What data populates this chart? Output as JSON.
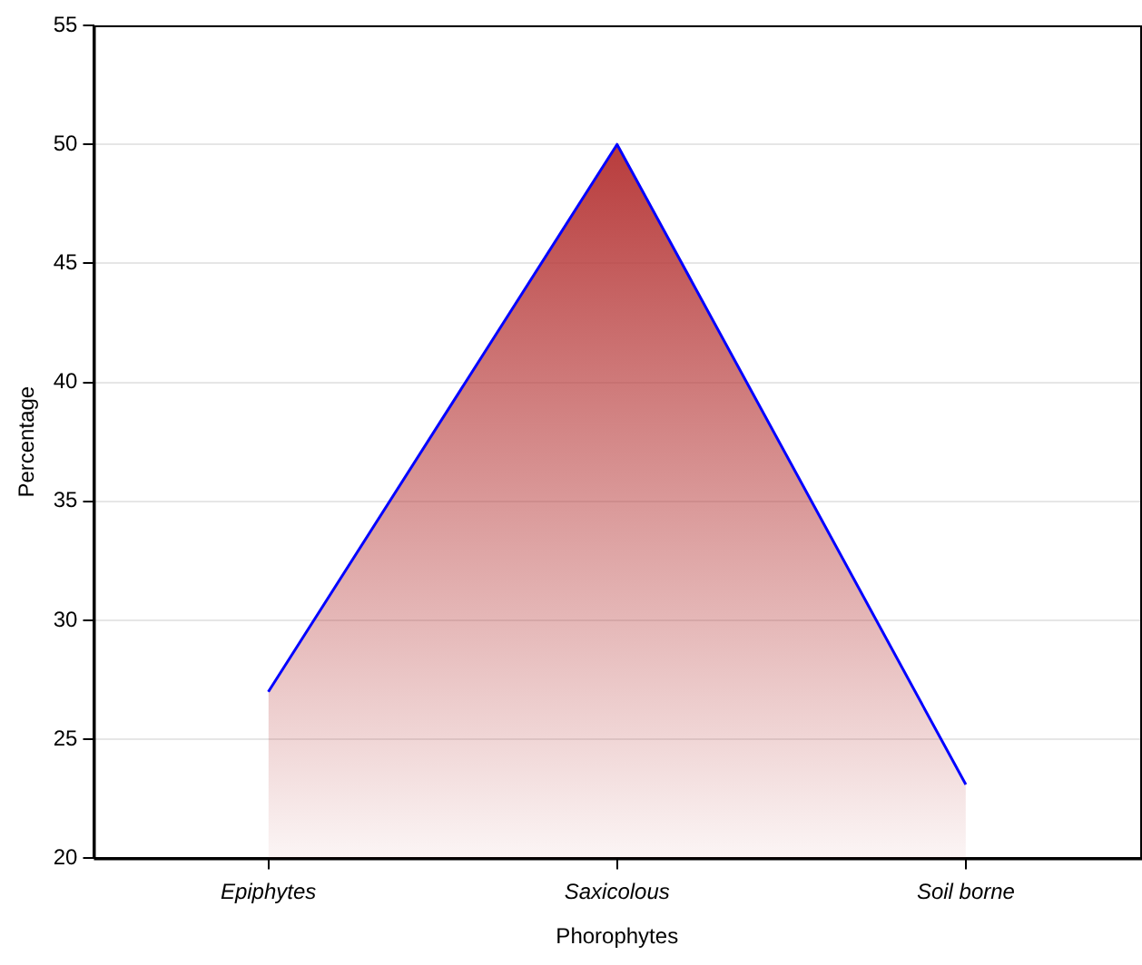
{
  "chart_data": {
    "type": "area",
    "xlabel": "Phorophytes",
    "ylabel": "Percentage",
    "categories": [
      "Epiphytes",
      "Saxicolous",
      "Soil borne"
    ],
    "series": [
      {
        "color": "#b83c3c",
        "values": [
          27,
          50,
          23.1
        ]
      }
    ],
    "ylim": [
      20,
      55
    ],
    "yticks": [
      20,
      25,
      30,
      35,
      40,
      45,
      50,
      55
    ],
    "grid": "y",
    "legend": false
  }
}
